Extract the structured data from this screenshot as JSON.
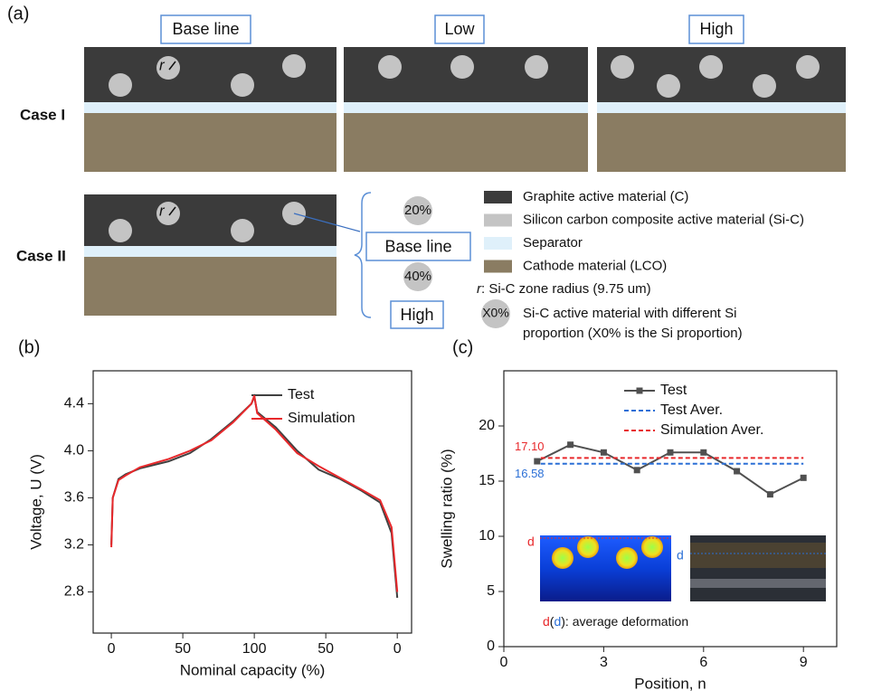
{
  "panel_a": {
    "label": "(a)",
    "columns": [
      "Base line",
      "Low",
      "High"
    ],
    "rows": [
      "Case I",
      "Case II"
    ],
    "radius_marker": "r",
    "case2_options": [
      {
        "percent": "20%",
        "label": "Base line"
      },
      {
        "percent": "40%",
        "label": "High"
      }
    ],
    "legend": [
      {
        "label": "Graphite active material (C)",
        "color": "#3b3b3b"
      },
      {
        "label": "Silicon carbon composite active material (Si-C)",
        "color": "#c4c4c4"
      },
      {
        "label": "Separator",
        "color": "#dff0fa"
      },
      {
        "label": "Cathode material (LCO)",
        "color": "#8a7c62"
      }
    ],
    "radius_note": {
      "symbol": "r",
      "text": ": Si-C zone radius (9.75 um)"
    },
    "proportion_note": {
      "symbol": "X0%",
      "lines": [
        "Si-C active material with different Si",
        "proportion (X0% is the Si proportion)"
      ]
    }
  },
  "chart_data": [
    {
      "type": "line",
      "label": "(b)",
      "x_label": "Nominal capacity (%)",
      "y_label": "Voltage, U (V)",
      "x": [
        0,
        1,
        5,
        10,
        20,
        40,
        55,
        70,
        85,
        98,
        100,
        102,
        115,
        130,
        145,
        160,
        175,
        188,
        196,
        200
      ],
      "series": [
        {
          "name": "Test",
          "color": "#404040",
          "values": [
            3.2,
            3.6,
            3.76,
            3.8,
            3.85,
            3.91,
            3.98,
            4.1,
            4.25,
            4.4,
            4.46,
            4.33,
            4.2,
            4.0,
            3.84,
            3.76,
            3.66,
            3.56,
            3.3,
            2.75
          ]
        },
        {
          "name": "Simulation",
          "color": "#e8282b",
          "values": [
            3.18,
            3.6,
            3.75,
            3.79,
            3.86,
            3.93,
            4.0,
            4.09,
            4.24,
            4.4,
            4.47,
            4.32,
            4.18,
            3.98,
            3.87,
            3.77,
            3.67,
            3.58,
            3.35,
            2.8
          ]
        }
      ],
      "xlim": [
        -12.7,
        210
      ],
      "xticks": [
        0,
        50,
        100,
        {
          "value": 150,
          "label": "50"
        },
        {
          "value": 200,
          "label": "0"
        }
      ],
      "ylim": [
        2.45,
        4.68
      ],
      "yticks": [
        2.8,
        3.2,
        3.6,
        {
          "value": 4,
          "label": "4.0"
        },
        4.4
      ]
    },
    {
      "type": "line",
      "label": "(c)",
      "x_label": "Position, n",
      "y_label": "Swelling ratio (%)",
      "x": [
        1,
        2,
        3,
        4,
        5,
        6,
        7,
        8,
        9
      ],
      "series": [
        {
          "name": "Test",
          "color": "#505050",
          "marker": "square",
          "values": [
            16.8,
            18.3,
            17.6,
            16.0,
            17.6,
            17.6,
            15.9,
            13.8,
            15.3
          ]
        }
      ],
      "reference_lines": [
        {
          "name": "Test Aver.",
          "color": "#2a6fd6",
          "value": 16.58,
          "value_label": "16.58"
        },
        {
          "name": "Simulation Aver.",
          "color": "#e8282b",
          "value": 17.1,
          "value_label": "17.10"
        }
      ],
      "xlim": [
        0,
        10
      ],
      "xticks": [
        0,
        3,
        6,
        9
      ],
      "ylim": [
        0,
        25
      ],
      "yticks": [
        0,
        5,
        10,
        15,
        20
      ],
      "inset": {
        "symbol": "d",
        "note_parts": [
          "d",
          "(",
          "d",
          "): average deformation"
        ]
      }
    }
  ]
}
